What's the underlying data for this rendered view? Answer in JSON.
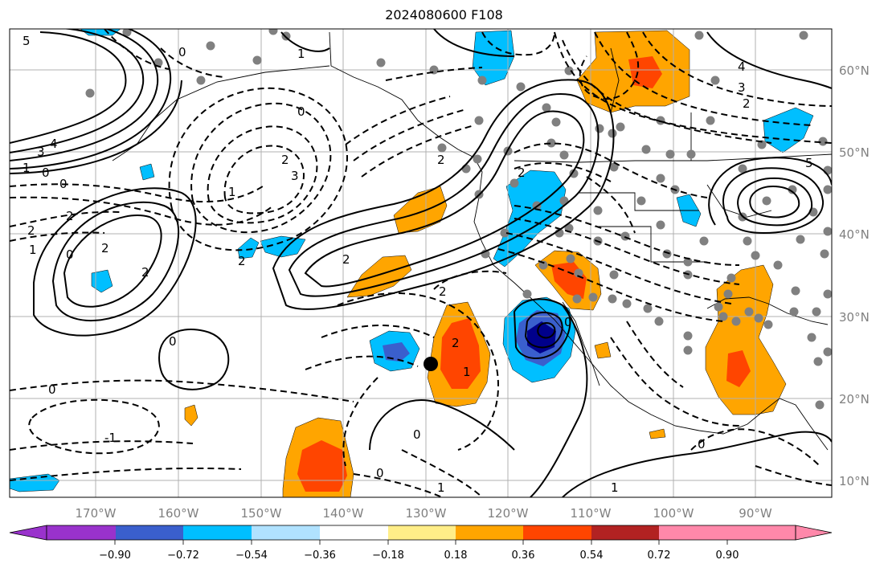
{
  "title": "2024080600 F108",
  "lon_labels": [
    "170°W",
    "160°W",
    "150°W",
    "140°W",
    "130°W",
    "120°W",
    "110°W",
    "100°W",
    "90°W"
  ],
  "lat_labels": [
    "60°N",
    "50°N",
    "40°N",
    "30°N",
    "20°N",
    "10°N"
  ],
  "colorbar": {
    "ticks": [
      "−0.90",
      "−0.72",
      "−0.54",
      "−0.36",
      "−0.18",
      "0.18",
      "0.36",
      "0.54",
      "0.72",
      "0.90"
    ],
    "colors": [
      "#9932cc",
      "#00008b",
      "#3a5fcd",
      "#00bfff",
      "#b0e2ff",
      "#ffffff",
      "#ffee88",
      "#ffa500",
      "#ff4500",
      "#b22222",
      "#ff88aa"
    ]
  },
  "contour_labels": [
    "5",
    "4",
    "3",
    "0",
    "1",
    "0",
    "2",
    "1",
    "2",
    "0",
    "2",
    "3",
    "2",
    "2",
    "1",
    "2",
    "2",
    "0",
    "2",
    "1",
    "2",
    "0",
    "0",
    "-1",
    "2",
    "4",
    "3",
    "2",
    "2",
    "1",
    "0",
    "5",
    "0",
    "0",
    "0",
    "1",
    "0",
    "1"
  ],
  "colors": {
    "warm_light": "#ffa500",
    "warm_dark": "#ff4500",
    "cool_light": "#00bfff",
    "cool_dark": "#3a5fcd",
    "deep_cool": "#00008b",
    "station": "#808080",
    "grid": "#b0b0b0"
  }
}
